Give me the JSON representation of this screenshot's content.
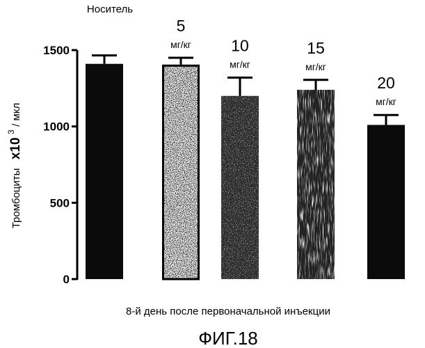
{
  "chart_data": {
    "type": "bar",
    "categories": [
      "Носитель",
      "5 мг/кг",
      "10 мг/кг",
      "15 мг/кг",
      "20 мг/кг"
    ],
    "category_labels": [
      {
        "number": "",
        "unit": "Носитель"
      },
      {
        "number": "5",
        "unit": "мг/кг"
      },
      {
        "number": "10",
        "unit": "мг/кг"
      },
      {
        "number": "15",
        "unit": "мг/кг"
      },
      {
        "number": "20",
        "unit": "мг/кг"
      }
    ],
    "values": [
      1410,
      1405,
      1200,
      1240,
      1010
    ],
    "errors": [
      55,
      45,
      120,
      65,
      65
    ],
    "bar_fills": [
      "solid-black",
      "light-speckled",
      "dark-speckled",
      "dark-striated",
      "solid-black"
    ],
    "ylim": [
      0,
      1500
    ],
    "yticks": [
      0,
      500,
      1000,
      1500
    ],
    "ytick_labels": [
      "0",
      "500",
      "1000",
      "1500"
    ],
    "ylabel": {
      "prefix": "Тромбоциты",
      "main": "x10",
      "sup": "3",
      "suffix": "/ мкл"
    },
    "xlabel": "8-й день  после первоначальной инъекции",
    "caption": "ФИГ.18"
  }
}
